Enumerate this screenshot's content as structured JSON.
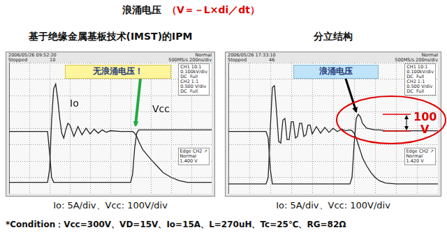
{
  "header": {
    "text": "浪涌电压",
    "formula": "（V＝－L×di／dt）"
  },
  "chart_data": [
    {
      "type": "line",
      "title": "基于绝缘金属基板技术(IMST)的IPM",
      "xlabel": "Io: 5A/div、Vcc: 100V/div",
      "callout": "无浪涌电压！",
      "x": [
        0,
        1,
        1.9,
        2.0,
        2.1,
        2.2,
        2.3,
        2.4,
        2.5,
        2.6,
        2.7,
        2.8,
        2.9,
        3.0,
        3.2,
        3.4,
        3.6,
        3.8,
        4.0,
        4.2,
        4.4,
        4.6,
        4.8,
        5.0,
        5.5,
        6.0,
        6.1,
        6.2,
        6.3,
        6.4,
        6.6,
        6.8,
        7.0,
        7.3,
        7.6,
        8.0,
        8.4,
        8.8,
        9.2,
        10
      ],
      "series": [
        {
          "name": "Io",
          "color": "#222222",
          "values": [
            -3.3,
            -3.3,
            -3.3,
            -2.5,
            0.5,
            2.4,
            2.7,
            1.8,
            0.6,
            -0.3,
            -0.6,
            -0.1,
            0.3,
            0.2,
            -0.5,
            0.1,
            -0.4,
            0.0,
            -0.35,
            -0.05,
            -0.3,
            -0.1,
            -0.25,
            -0.15,
            -0.2,
            -0.2,
            -0.2,
            -0.3,
            -0.5,
            -0.8,
            -1.3,
            -1.6,
            -1.9,
            -2.3,
            -2.7,
            -3.0,
            -3.2,
            -3.3,
            -3.3,
            -3.3
          ]
        },
        {
          "name": "Vcc",
          "color": "#222222",
          "values": [
            -0.2,
            -0.2,
            -0.2,
            -1.5,
            -3.0,
            -3.3,
            -3.3,
            -3.3,
            -3.3,
            -3.3,
            -3.3,
            -3.3,
            -3.3,
            -3.3,
            -3.3,
            -3.3,
            -3.3,
            -3.3,
            -3.3,
            -3.3,
            -3.3,
            -3.3,
            -3.3,
            -3.3,
            -3.3,
            -3.3,
            -2.8,
            -1.2,
            -0.3,
            -0.1,
            -0.1,
            -0.1,
            -0.1,
            -0.1,
            -0.1,
            -0.1,
            -0.1,
            -0.1,
            -0.1,
            -0.1
          ]
        }
      ],
      "xlim": [
        0,
        10
      ],
      "ylim": [
        -4,
        4
      ],
      "xticks": [
        0,
        1,
        2,
        3,
        4,
        5,
        6,
        7,
        8,
        9,
        10
      ],
      "yticks": [
        -4,
        -3,
        -2,
        -1,
        0,
        1,
        2,
        3,
        4
      ],
      "grid": true,
      "tick_labels": false
    },
    {
      "type": "line",
      "title": "分立结构",
      "xlabel": "Io: 5A/div、Vcc: 100V/div",
      "callout": "浪涌电压",
      "surge": {
        "value": 100,
        "unit": "V"
      },
      "x": [
        0,
        1,
        1.8,
        1.9,
        2.0,
        2.1,
        2.2,
        2.3,
        2.4,
        2.5,
        2.6,
        2.7,
        2.8,
        2.9,
        3.0,
        3.1,
        3.2,
        3.3,
        3.4,
        3.5,
        3.6,
        3.7,
        3.8,
        3.9,
        4.0,
        4.2,
        4.4,
        4.6,
        4.8,
        5.0,
        5.2,
        5.4,
        5.6,
        5.8,
        5.9,
        6.0,
        6.1,
        6.2,
        6.3,
        6.4,
        6.6,
        6.8,
        7.0,
        7.2,
        7.5,
        8.0,
        8.5,
        9.0,
        10
      ],
      "series": [
        {
          "color": "#222222",
          "values": [
            -3.4,
            -3.4,
            -3.4,
            -3.0,
            0,
            2.5,
            2.6,
            1.0,
            -0.8,
            -0.9,
            0.5,
            0.6,
            -0.7,
            -0.7,
            0.4,
            0.4,
            -0.6,
            -0.5,
            0.3,
            0.3,
            -0.5,
            -0.4,
            0.2,
            0.2,
            -0.35,
            0.1,
            -0.3,
            0.05,
            -0.25,
            0.0,
            -0.2,
            -0.05,
            -0.15,
            -0.1,
            -0.15,
            -0.3,
            -0.6,
            -1.0,
            -1.4,
            -1.8,
            -2.3,
            -2.7,
            -3.0,
            -3.2,
            -3.35,
            -3.4,
            -3.4,
            -3.4,
            -3.4
          ]
        },
        {
          "color": "#222222",
          "values": [
            -0.2,
            -0.2,
            -0.2,
            -0.6,
            -2.5,
            -3.4,
            -3.4,
            -3.4,
            -3.4,
            -3.4,
            -3.4,
            -3.4,
            -3.4,
            -3.4,
            -3.4,
            -3.4,
            -3.4,
            -3.4,
            -3.4,
            -3.4,
            -3.4,
            -3.4,
            -3.4,
            -3.4,
            -3.4,
            -3.4,
            -3.4,
            -3.4,
            -3.4,
            -3.4,
            -3.4,
            -3.4,
            -3.4,
            -3.4,
            -3.0,
            -1.0,
            0.6,
            0.85,
            0.7,
            0.3,
            0.0,
            -0.05,
            -0.1,
            -0.1,
            -0.15,
            -0.15,
            -0.15,
            -0.15,
            -0.15
          ]
        }
      ],
      "xlim": [
        0,
        10
      ],
      "ylim": [
        -4,
        4
      ],
      "xticks": [
        0,
        1,
        2,
        3,
        4,
        5,
        6,
        7,
        8,
        9,
        10
      ],
      "yticks": [
        -4,
        -3,
        -2,
        -1,
        0,
        1,
        2,
        3,
        4
      ],
      "grid": true,
      "tick_labels": false
    }
  ],
  "screens": [
    {
      "time": "2006/05/26 09:52:20",
      "state": "Stopped",
      "count": "10",
      "mode": "Normal",
      "rate": "500MS/s 200ns/div",
      "channels": [
        "CH1 10:1",
        "0.100kV/div",
        "DC  Full",
        "CH2 1:1",
        "0.500 V/div",
        "DC  Full"
      ],
      "trigger": [
        "Edge CH2 ↗",
        "Normal",
        "1.400 V"
      ]
    },
    {
      "time": "2006/05/26 17:33:10",
      "state": "Stopped",
      "count": "46",
      "mode": "Normal",
      "rate": "500MS/s 200ns/div",
      "channels": [
        "CH1 10:1",
        "0.100kV/div",
        "DC  Full",
        "CH2 1:1",
        "0.500 V/div",
        "DC  Full"
      ],
      "trigger": [
        "Edge CH2 ↗",
        "Normal",
        "1.420 V"
      ]
    }
  ],
  "footer": "*Condition：Vcc=300V、VD=15V、Io=15A、L=270uH、Tc=25℃、RG=82Ω"
}
